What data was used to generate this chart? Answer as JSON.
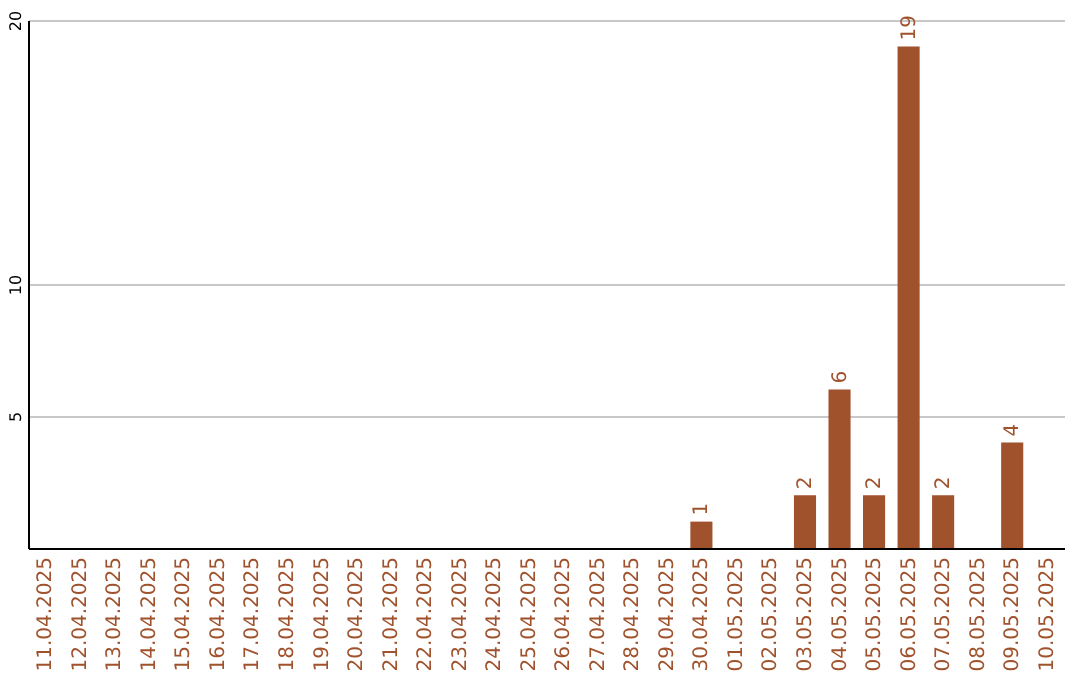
{
  "chart_data": {
    "type": "bar",
    "categories": [
      "11.04.2025",
      "12.04.2025",
      "13.04.2025",
      "14.04.2025",
      "15.04.2025",
      "16.04.2025",
      "17.04.2025",
      "18.04.2025",
      "19.04.2025",
      "20.04.2025",
      "21.04.2025",
      "22.04.2025",
      "23.04.2025",
      "24.04.2025",
      "25.04.2025",
      "26.04.2025",
      "27.04.2025",
      "28.04.2025",
      "29.04.2025",
      "30.04.2025",
      "01.05.2025",
      "02.05.2025",
      "03.05.2025",
      "04.05.2025",
      "05.05.2025",
      "06.05.2025",
      "07.05.2025",
      "08.05.2025",
      "09.05.2025",
      "10.05.2025"
    ],
    "values": [
      0,
      0,
      0,
      0,
      0,
      0,
      0,
      0,
      0,
      0,
      0,
      0,
      0,
      0,
      0,
      0,
      0,
      0,
      0,
      1,
      0,
      0,
      2,
      6,
      2,
      19,
      2,
      0,
      4,
      0
    ],
    "value_labels": [
      null,
      null,
      null,
      null,
      null,
      null,
      null,
      null,
      null,
      null,
      null,
      null,
      null,
      null,
      null,
      null,
      null,
      null,
      null,
      "1",
      null,
      null,
      "2",
      "6",
      "2",
      "19",
      "2",
      null,
      "4",
      null
    ],
    "color": "#a0522d",
    "ylim": [
      0,
      20
    ],
    "yticks": [
      5,
      10,
      20
    ],
    "grid": "y"
  }
}
